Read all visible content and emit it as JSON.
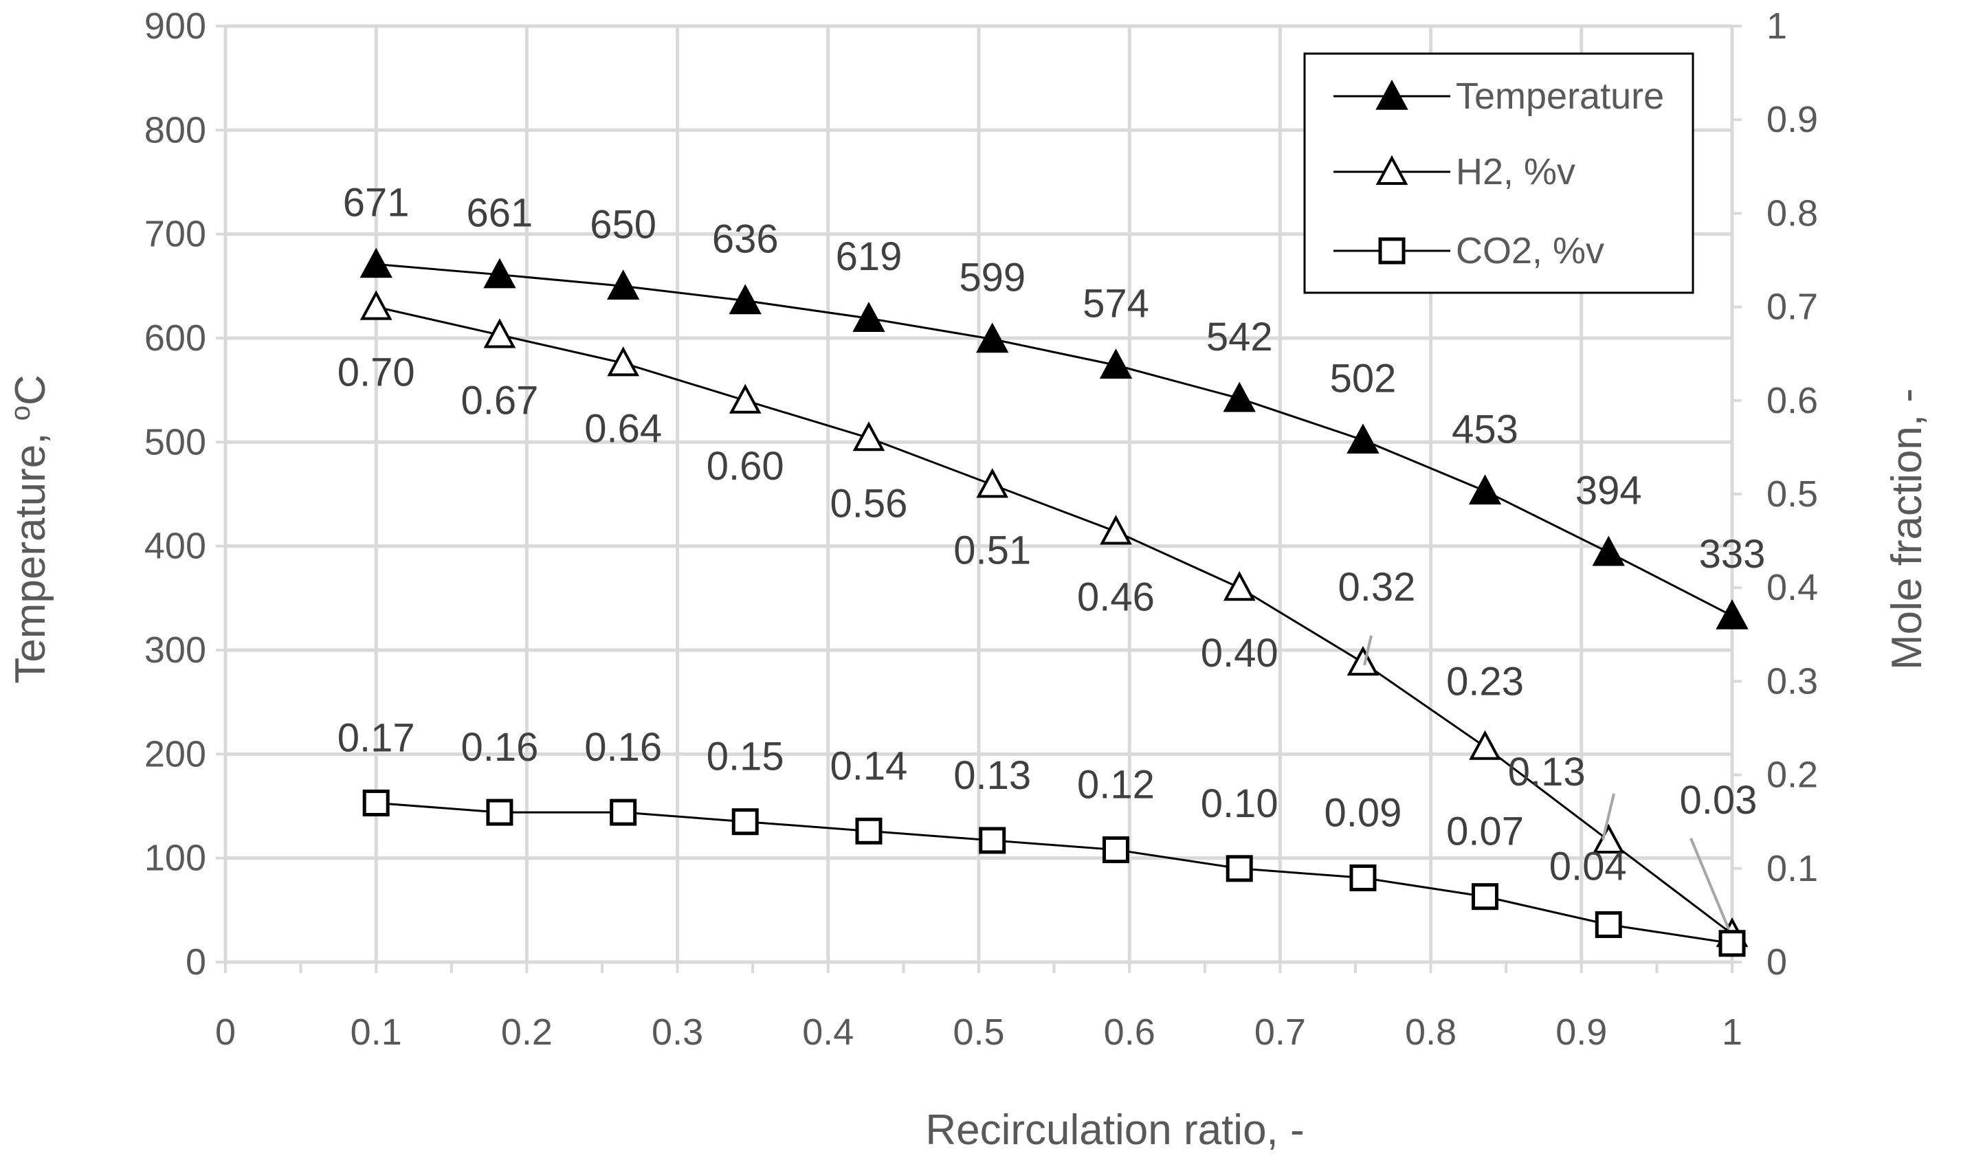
{
  "chart_data": {
    "type": "line",
    "xlabel": "Recirculation ratio, -",
    "ylabel_left": "Temperature, ",
    "ylabel_left_sup": "o",
    "ylabel_left_unit": "C",
    "ylabel_right": "Mole fraction, -",
    "xlim": [
      0,
      1
    ],
    "ylim_left": [
      0,
      900
    ],
    "ylim_right": [
      0,
      1
    ],
    "x_ticks": [
      "0",
      "0.1",
      "0.2",
      "0.3",
      "0.4",
      "0.5",
      "0.6",
      "0.7",
      "0.8",
      "0.9",
      "1"
    ],
    "y_left_ticks": [
      "0",
      "100",
      "200",
      "300",
      "400",
      "500",
      "600",
      "700",
      "800",
      "900"
    ],
    "y_right_ticks": [
      "0",
      "0.1",
      "0.2",
      "0.3",
      "0.4",
      "0.5",
      "0.6",
      "0.7",
      "0.8",
      "0.9",
      "1"
    ],
    "grid": true,
    "legend_position": "top-right",
    "series": [
      {
        "name": "Temperature",
        "axis": "left",
        "marker": "filled-triangle",
        "x": [
          0.1,
          0.182,
          0.264,
          0.345,
          0.427,
          0.509,
          0.591,
          0.673,
          0.755,
          0.836,
          0.918,
          1.0
        ],
        "values": [
          671,
          661,
          650,
          636,
          619,
          599,
          574,
          542,
          502,
          453,
          394,
          333
        ],
        "labels": [
          "671",
          "661",
          "650",
          "636",
          "619",
          "599",
          "574",
          "542",
          "502",
          "453",
          "394",
          "333"
        ]
      },
      {
        "name": "H2, %v",
        "axis": "right",
        "marker": "open-triangle",
        "x": [
          0.1,
          0.182,
          0.264,
          0.345,
          0.427,
          0.509,
          0.591,
          0.673,
          0.755,
          0.836,
          0.918,
          1.0
        ],
        "values": [
          0.7,
          0.67,
          0.64,
          0.6,
          0.56,
          0.51,
          0.46,
          0.4,
          0.32,
          0.23,
          0.13,
          0.03
        ],
        "labels": [
          "0.70",
          "0.67",
          "0.64",
          "0.60",
          "0.56",
          "0.51",
          "0.46",
          "0.40",
          "0.32",
          "0.23",
          "0.13",
          "0.03"
        ]
      },
      {
        "name": "CO2, %v",
        "axis": "right",
        "marker": "open-square",
        "x": [
          0.1,
          0.182,
          0.264,
          0.345,
          0.427,
          0.509,
          0.591,
          0.673,
          0.755,
          0.836,
          0.918,
          1.0
        ],
        "values": [
          0.17,
          0.16,
          0.16,
          0.15,
          0.14,
          0.13,
          0.12,
          0.1,
          0.09,
          0.07,
          0.04,
          0.02
        ],
        "labels": [
          "0.17",
          "0.16",
          "0.16",
          "0.15",
          "0.14",
          "0.13",
          "0.12",
          "0.10",
          "0.09",
          "0.07",
          "0.04",
          ""
        ]
      }
    ]
  }
}
